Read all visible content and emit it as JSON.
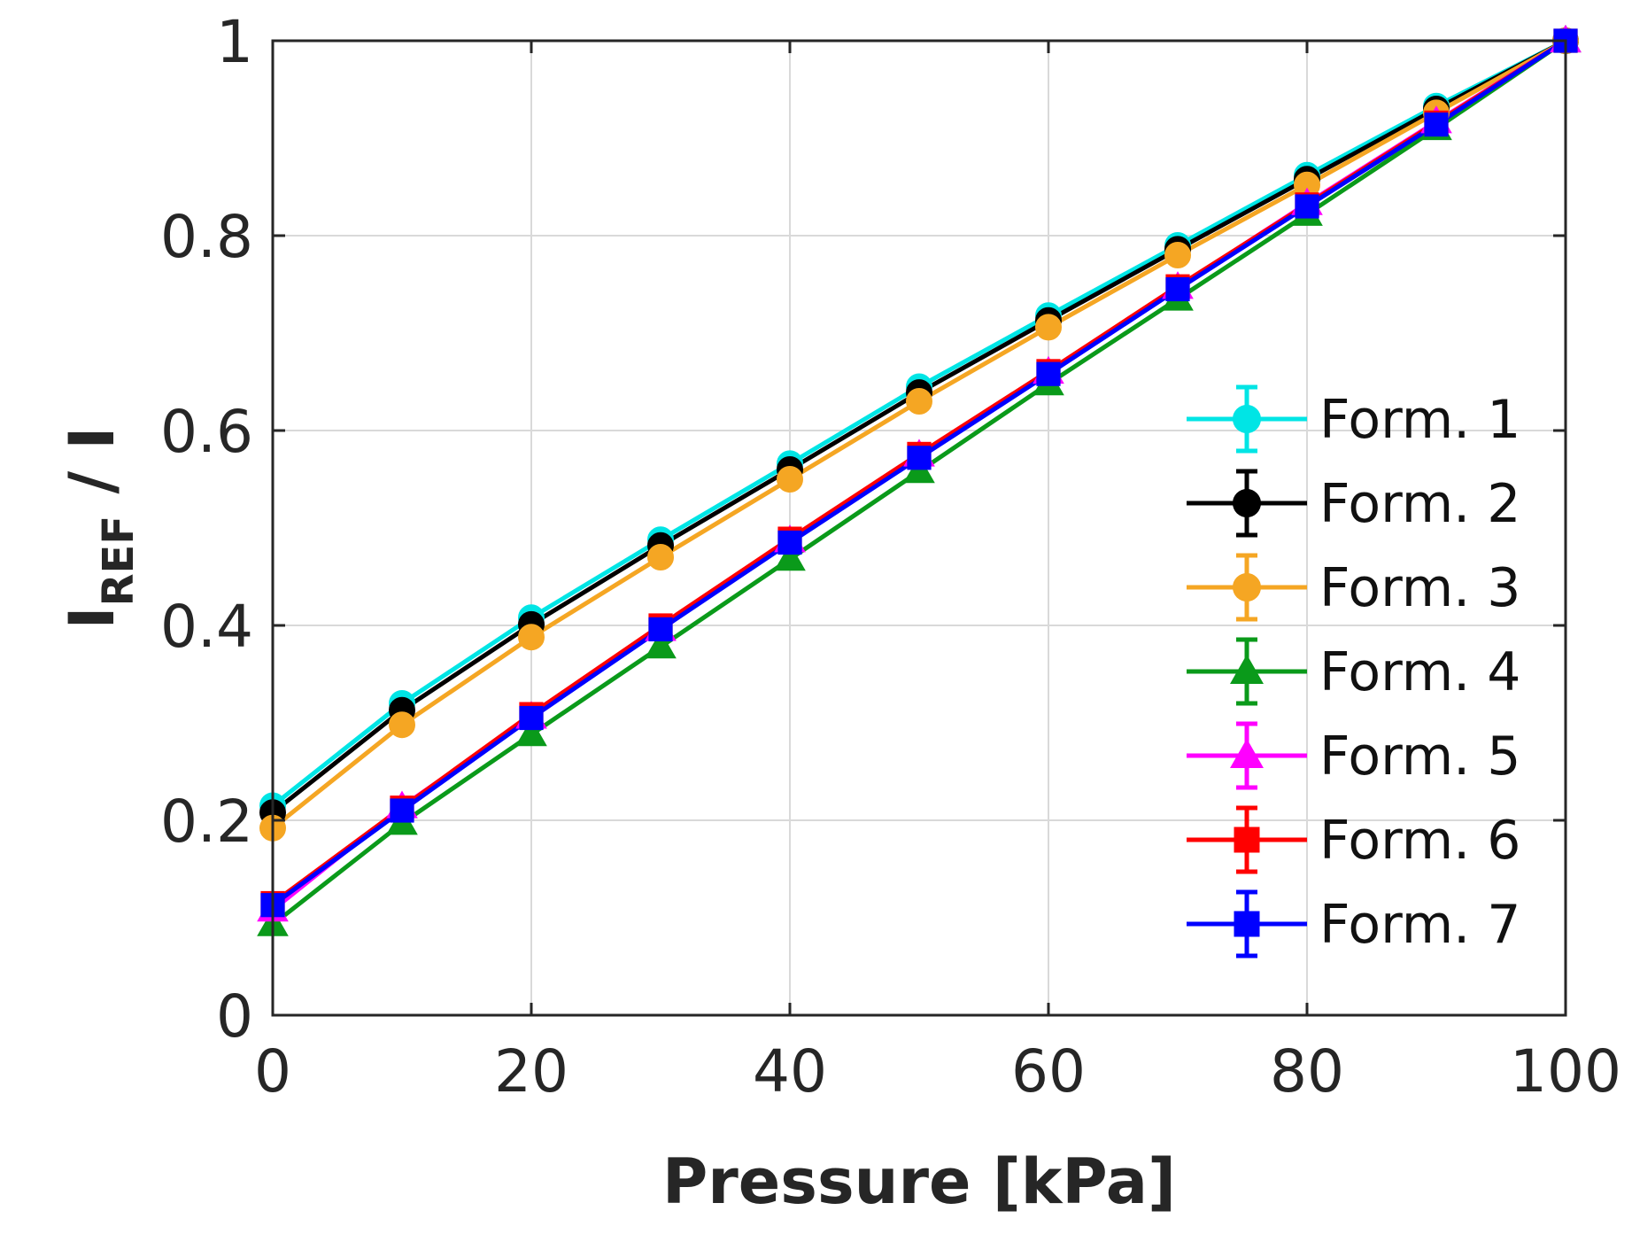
{
  "chart_data": {
    "type": "line",
    "title": "",
    "xlabel": "Pressure [kPa]",
    "ylabel_main": "I",
    "ylabel_sub": "REF",
    "ylabel_tail": " / I",
    "xlim": [
      0,
      100
    ],
    "ylim": [
      0,
      1
    ],
    "grid": true,
    "legend_position": "bottom-right",
    "x_ticks": [
      0,
      20,
      40,
      60,
      80,
      100
    ],
    "x_tick_labels": [
      "0",
      "20",
      "40",
      "60",
      "80",
      "100"
    ],
    "y_ticks": [
      0,
      0.2,
      0.4,
      0.6,
      0.8,
      1
    ],
    "y_tick_labels": [
      "0",
      "0.2",
      "0.4",
      "0.6",
      "0.8",
      "1"
    ],
    "x": [
      0,
      10,
      20,
      30,
      40,
      50,
      60,
      70,
      80,
      90,
      100
    ],
    "series": [
      {
        "name": "Form. 1",
        "color": "#00e5e5",
        "marker": "circle",
        "values": [
          0.215,
          0.32,
          0.408,
          0.488,
          0.566,
          0.645,
          0.718,
          0.79,
          0.862,
          0.933,
          1.0
        ]
      },
      {
        "name": "Form. 2",
        "color": "#000000",
        "marker": "circle",
        "values": [
          0.208,
          0.313,
          0.401,
          0.482,
          0.56,
          0.639,
          0.713,
          0.786,
          0.858,
          0.93,
          1.0
        ]
      },
      {
        "name": "Form. 3",
        "color": "#f5a623",
        "marker": "circle",
        "values": [
          0.192,
          0.298,
          0.388,
          0.47,
          0.55,
          0.63,
          0.706,
          0.78,
          0.852,
          0.926,
          1.0
        ]
      },
      {
        "name": "Form. 4",
        "color": "#0a9a1a",
        "marker": "triangle",
        "values": [
          0.093,
          0.197,
          0.288,
          0.378,
          0.468,
          0.558,
          0.648,
          0.735,
          0.822,
          0.91,
          1.0
        ]
      },
      {
        "name": "Form. 5",
        "color": "#ff00ff",
        "marker": "triangle",
        "values": [
          0.108,
          0.214,
          0.306,
          0.396,
          0.487,
          0.575,
          0.66,
          0.747,
          0.833,
          0.917,
          1.0
        ]
      },
      {
        "name": "Form. 6",
        "color": "#ff0000",
        "marker": "square",
        "values": [
          0.115,
          0.213,
          0.309,
          0.4,
          0.489,
          0.576,
          0.661,
          0.748,
          0.832,
          0.916,
          1.0
        ]
      },
      {
        "name": "Form. 7",
        "color": "#0000ff",
        "marker": "square",
        "values": [
          0.113,
          0.21,
          0.305,
          0.396,
          0.485,
          0.572,
          0.658,
          0.745,
          0.83,
          0.914,
          1.0
        ]
      }
    ]
  }
}
